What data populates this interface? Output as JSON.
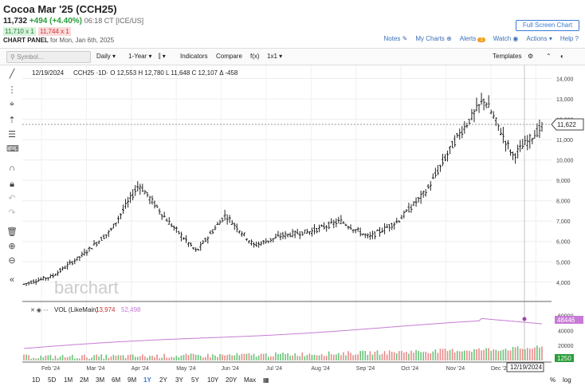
{
  "header": {
    "title": "Cocoa Mar '25 (CCH25)",
    "last_price": "11,732",
    "change": "+494 (+4.40%)",
    "time": "06:18 CT [ICE/US]",
    "bid": "11,710 x 1",
    "ask": "11,744 x 1",
    "panel_label": "CHART PANEL",
    "panel_date": "for Mon, Jan 6th, 2025",
    "fullscreen_label": "Full Screen Chart"
  },
  "top_links": {
    "notes": "Notes",
    "my_charts": "My Charts",
    "alerts": "Alerts",
    "alerts_count": "1",
    "watch": "Watch",
    "actions": "Actions",
    "help": "Help"
  },
  "toolbar": {
    "search_placeholder": "Symbol...",
    "interval": "Daily",
    "period": "1-Year",
    "indicators": "Indicators",
    "compare": "Compare",
    "fx": "f(x)",
    "layout": "1x1",
    "templates": "Templates"
  },
  "chart_info": {
    "date": "12/19/2024",
    "ohlc_label": "CCH25 ·1D·  O 12,553  H 12,780  L 11,648  C 12,107  Δ -458",
    "watermark": "barchart",
    "current_price_label": "11,622",
    "crosshair_date": "12/19/2024"
  },
  "volume_info": {
    "label": "VOL (LikeMain)",
    "value1": "13,974",
    "value2": "52,498",
    "oi_label": "48446",
    "vol_label": "1250"
  },
  "colors": {
    "up": "#2a9d3a",
    "down": "#cc3333",
    "accent": "#3a7bd5",
    "oi_line": "#c77ad6"
  },
  "chart_data": {
    "type": "bar",
    "title": "Cocoa Mar '25 (CCH25)",
    "x_tick_labels": [
      "Feb '24",
      "Mar '24",
      "Apr '24",
      "May '24",
      "Jun '24",
      "Jul '24",
      "Aug '24",
      "Sep '24",
      "Oct '24",
      "Nov '24",
      "Dec '24",
      "'25"
    ],
    "y_tick_labels": [
      "14,000",
      "13,000",
      "12,000",
      "11,000",
      "10,000",
      "9,000",
      "8,000",
      "7,000",
      "6,000",
      "5,000",
      "4,000"
    ],
    "ylim": [
      3600,
      14100
    ],
    "price_path": [
      [
        "Jan '24",
        3900
      ],
      [
        "Feb '24",
        4300
      ],
      [
        "Mar '24",
        5300
      ],
      [
        "Apr '24",
        6500
      ],
      [
        "Apr '24 late",
        8800
      ],
      [
        "May '24",
        7000
      ],
      [
        "May '24 mid",
        5500
      ],
      [
        "Jun '24",
        7300
      ],
      [
        "Jul '24",
        5800
      ],
      [
        "Aug '24",
        6300
      ],
      [
        "Sep '24",
        6500
      ],
      [
        "Oct '24",
        7000
      ],
      [
        "Oct '24 late",
        6200
      ],
      [
        "Nov '24",
        7000
      ],
      [
        "Nov '24 late",
        8500
      ],
      [
        "Dec '24",
        11000
      ],
      [
        "Dec '24 mid",
        13000
      ],
      [
        "Dec '24 late",
        10200
      ],
      [
        "Jan '25",
        11622
      ]
    ],
    "volume_axis": [
      "60000",
      "40000",
      "20000"
    ],
    "ylabel": "",
    "xlabel": ""
  },
  "range_buttons": [
    "1D",
    "5D",
    "1M",
    "2M",
    "3M",
    "6M",
    "9M",
    "1Y",
    "2Y",
    "3Y",
    "5Y",
    "10Y",
    "20Y",
    "Max"
  ],
  "range_selected": "1Y",
  "range_right": [
    "%",
    "log"
  ]
}
